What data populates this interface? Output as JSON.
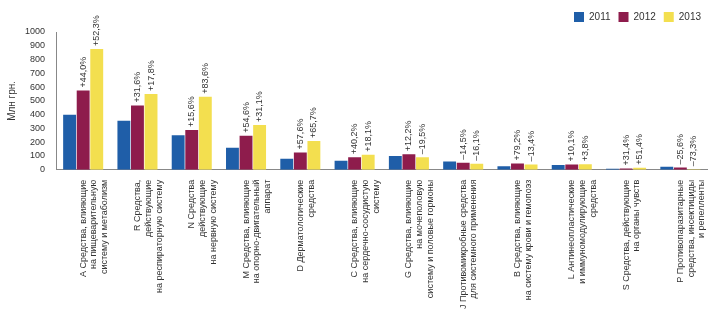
{
  "chart_data": {
    "type": "bar",
    "y_label": "Млн грн.",
    "categories": [
      [
        "A Средства, влияющие",
        "на пищеварительную",
        "систему и метаболизм"
      ],
      [
        "R Средства,",
        "действующие",
        "на респираторную систему"
      ],
      [
        "N Средства",
        "действующие",
        "на нервную систему"
      ],
      [
        "M Средства, влияющие",
        "на опорно-двигательный",
        "аппарат"
      ],
      [
        "D Дерматологические",
        "средства"
      ],
      [
        "C Средства, влияющие",
        "на сердечно-сосудистую",
        "систему"
      ],
      [
        "G Средства, влияющие",
        "на мочеполовую",
        "систему и половые гормоны"
      ],
      [
        "J Противомикробные средства",
        "для системного применения"
      ],
      [
        "B Средства, влияющие",
        "на систему крови и гемопоэз"
      ],
      [
        "L Антинеопластические",
        "и иммуномодулирующие",
        "средства"
      ],
      [
        "S Средства, действующие",
        "на органы чувств"
      ],
      [
        "P Противопаразитарные",
        "средства, инсектициды",
        "и репелленты"
      ]
    ],
    "series": [
      {
        "name": "2011",
        "color": "#1f5ea8",
        "values": [
          400,
          355,
          250,
          160,
          80,
          65,
          100,
          60,
          25,
          35,
          7,
          22
        ]
      },
      {
        "name": "2012",
        "color": "#8e1c4c",
        "values": [
          575,
          467,
          289,
          247,
          126,
          91,
          112,
          51,
          45,
          39,
          9,
          16
        ],
        "change_labels": [
          "+44,0%",
          "+31,6%",
          "+15,6%",
          "+54,6%",
          "+57,6%",
          "+40,2%",
          "+12,2%",
          "–14,5%",
          "+79,2%",
          "+10,1%",
          "+31,4%",
          "–25,6%"
        ]
      },
      {
        "name": "2013",
        "color": "#f3df4f",
        "values": [
          876,
          550,
          530,
          324,
          209,
          108,
          90,
          43,
          39,
          40,
          14,
          4
        ],
        "change_labels": [
          "+52,3%",
          "+17,8%",
          "+83,6%",
          "+31,1%",
          "+65,7%",
          "+18,1%",
          "–19,5%",
          "–16,1%",
          "–13,4%",
          "+3,8%",
          "+51,4%",
          "–73,3%"
        ]
      }
    ],
    "ylim": [
      0,
      1000
    ],
    "yticks": [
      0,
      100,
      200,
      300,
      400,
      500,
      600,
      700,
      800,
      900,
      1000
    ],
    "grid": false,
    "legend": "top-right"
  }
}
